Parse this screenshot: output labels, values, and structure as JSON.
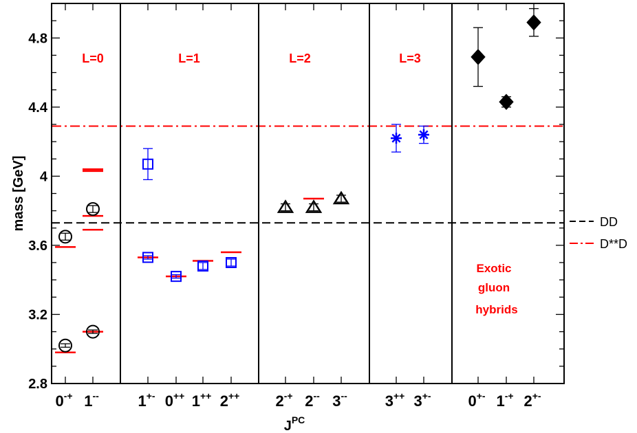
{
  "chart_data": {
    "type": "scatter",
    "ylabel": "mass [GeV]",
    "xlabel": "J",
    "xlabel_sup": "PC",
    "ylim": [
      2.8,
      5.0
    ],
    "yticks": [
      "2.8",
      "3.2",
      "3.6",
      "4",
      "4.4",
      "4.8"
    ],
    "categories": [
      {
        "base": "0",
        "sup": "-+"
      },
      {
        "base": "1",
        "sup": "--"
      },
      {
        "base": "1",
        "sup": "+-"
      },
      {
        "base": "0",
        "sup": "++"
      },
      {
        "base": "1",
        "sup": "++"
      },
      {
        "base": "2",
        "sup": "++"
      },
      {
        "base": "2",
        "sup": "-+"
      },
      {
        "base": "2",
        "sup": "--"
      },
      {
        "base": "3",
        "sup": "--"
      },
      {
        "base": "3",
        "sup": "++"
      },
      {
        "base": "3",
        "sup": "+-"
      },
      {
        "base": "0",
        "sup": "+-"
      },
      {
        "base": "1",
        "sup": "-+"
      },
      {
        "base": "2",
        "sup": "+-"
      }
    ],
    "regions": [
      {
        "label": "L=0"
      },
      {
        "label": "L=1"
      },
      {
        "label": "L=2"
      },
      {
        "label": "L=3"
      },
      {
        "label": ""
      }
    ],
    "exotic_label": [
      "Exotic",
      "gluon",
      "hybrids"
    ],
    "thresholds": [
      {
        "name": "DD",
        "mass": 3.73,
        "color": "#000000",
        "style": "dashed"
      },
      {
        "name": "D**D",
        "mass": 4.29,
        "color": "#ff0000",
        "style": "dash-dot"
      }
    ],
    "series": [
      {
        "marker": "circle",
        "color": "#000000",
        "points": [
          {
            "x": 0,
            "y": 3.02,
            "err": 0.01
          },
          {
            "x": 0,
            "y": 3.65,
            "err": 0.02
          },
          {
            "x": 1,
            "y": 3.1,
            "err": 0.01
          },
          {
            "x": 1,
            "y": 3.81,
            "err": 0.02
          }
        ]
      },
      {
        "marker": "square",
        "color": "#0000ff",
        "points": [
          {
            "x": 2,
            "y": 3.53,
            "err": 0.01
          },
          {
            "x": 2,
            "y": 4.07,
            "err": 0.09
          },
          {
            "x": 3,
            "y": 3.42,
            "err": 0.01
          },
          {
            "x": 4,
            "y": 3.48,
            "err": 0.02
          },
          {
            "x": 5,
            "y": 3.5,
            "err": 0.02
          }
        ]
      },
      {
        "marker": "triangle",
        "color": "#000000",
        "points": [
          {
            "x": 6,
            "y": 3.82,
            "err": 0.02
          },
          {
            "x": 7,
            "y": 3.82,
            "err": 0.02
          },
          {
            "x": 8,
            "y": 3.87,
            "err": 0.02
          }
        ]
      },
      {
        "marker": "star",
        "color": "#0000ff",
        "points": [
          {
            "x": 9,
            "y": 4.22,
            "err": 0.08
          },
          {
            "x": 10,
            "y": 4.24,
            "err": 0.05
          }
        ]
      },
      {
        "marker": "diamond",
        "color": "#000000",
        "points": [
          {
            "x": 11,
            "y": 4.69,
            "err": 0.17
          },
          {
            "x": 12,
            "y": 4.43,
            "err": 0.03
          },
          {
            "x": 13,
            "y": 4.89,
            "err": 0.08
          }
        ]
      }
    ],
    "experiment": [
      {
        "x": 0,
        "y": 2.98
      },
      {
        "x": 0,
        "y": 3.59
      },
      {
        "x": 1,
        "y": 3.1
      },
      {
        "x": 1,
        "y": 3.77
      },
      {
        "x": 1,
        "y": 3.69
      },
      {
        "x": 1,
        "y": 4.04
      },
      {
        "x": 1,
        "y": 4.03
      },
      {
        "x": 2,
        "y": 3.53
      },
      {
        "x": 3,
        "y": 3.42
      },
      {
        "x": 4,
        "y": 3.51
      },
      {
        "x": 5,
        "y": 3.56
      },
      {
        "x": 7,
        "y": 3.87
      }
    ]
  }
}
